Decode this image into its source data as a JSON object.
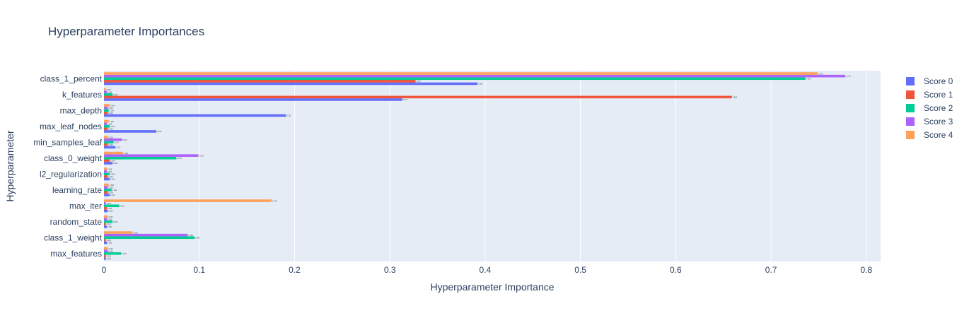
{
  "chart_data": {
    "type": "bar",
    "orientation": "horizontal",
    "title": "Hyperparameter Importances",
    "xlabel": "Hyperparameter Importance",
    "ylabel": "Hyperparameter",
    "xlim": [
      0,
      0.815
    ],
    "xticks": [
      "0",
      "0.1",
      "0.2",
      "0.3",
      "0.4",
      "0.5",
      "0.6",
      "0.7",
      "0.8"
    ],
    "grid": true,
    "legend_position": "top-right",
    "categories": [
      "max_features",
      "class_1_weight",
      "random_state",
      "max_iter",
      "learning_rate",
      "l2_regularization",
      "class_0_weight",
      "min_samples_leaf",
      "max_leaf_nodes",
      "max_depth",
      "k_features",
      "class_1_percent"
    ],
    "series": [
      {
        "name": "Score 0",
        "color": "#636efa",
        "values": [
          0.002,
          0.003,
          0.003,
          0.004,
          0.006,
          0.006,
          0.009,
          0.012,
          0.055,
          0.191,
          0.313,
          0.392
        ]
      },
      {
        "name": "Score 1",
        "color": "#ef553b",
        "values": [
          0.002,
          0.002,
          0.002,
          0.003,
          0.004,
          0.004,
          0.006,
          0.004,
          0.004,
          0.004,
          0.659,
          0.327
        ]
      },
      {
        "name": "Score 2",
        "color": "#00cc96",
        "values": [
          0.018,
          0.095,
          0.009,
          0.016,
          0.008,
          0.006,
          0.076,
          0.01,
          0.006,
          0.005,
          0.009,
          0.736
        ]
      },
      {
        "name": "Score 3",
        "color": "#ab63fa",
        "values": [
          0.004,
          0.088,
          0.003,
          0.002,
          0.004,
          0.003,
          0.099,
          0.019,
          0.003,
          0.004,
          0.003,
          0.778
        ]
      },
      {
        "name": "Score 4",
        "color": "#ffa15a",
        "values": [
          0.004,
          0.03,
          0.004,
          0.176,
          0.005,
          0.003,
          0.02,
          0.004,
          0.005,
          0.006,
          0.002,
          0.749
        ]
      }
    ]
  }
}
